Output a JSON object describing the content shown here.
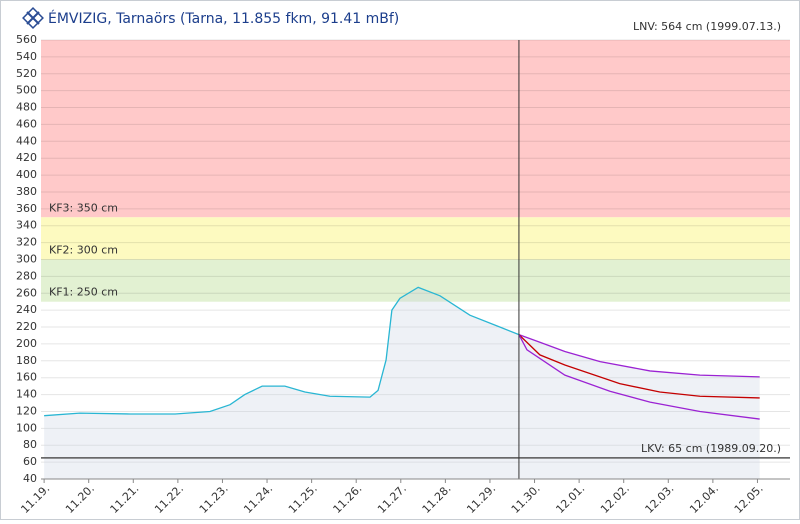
{
  "chart_data": {
    "type": "line",
    "title": "ÉMVIZIG, Tarnaörs (Tarna, 11.855 fkm, 91.41 mBf)",
    "annotation": "LNV: 564 cm (1999.07.13.)",
    "xlim": [
      -0.07,
      16.73
    ],
    "xticks": [
      {
        "value": 0,
        "label": "11.19."
      },
      {
        "value": 1,
        "label": "11.20."
      },
      {
        "value": 2,
        "label": "11.21."
      },
      {
        "value": 3,
        "label": "11.22."
      },
      {
        "value": 4,
        "label": "11.23."
      },
      {
        "value": 5,
        "label": "11.24."
      },
      {
        "value": 6,
        "label": "11.25."
      },
      {
        "value": 7,
        "label": "11.26."
      },
      {
        "value": 8,
        "label": "11.27."
      },
      {
        "value": 9,
        "label": "11.28."
      },
      {
        "value": 10,
        "label": "11.29."
      },
      {
        "value": 11,
        "label": "11.30."
      },
      {
        "value": 12,
        "label": "12.01."
      },
      {
        "value": 13,
        "label": "12.02."
      },
      {
        "value": 14,
        "label": "12.03."
      },
      {
        "value": 15,
        "label": "12.04."
      },
      {
        "value": 16,
        "label": "12.05."
      }
    ],
    "ylim": [
      40,
      560
    ],
    "yticks": [
      40,
      60,
      80,
      100,
      120,
      140,
      160,
      180,
      200,
      220,
      240,
      260,
      280,
      300,
      320,
      340,
      360,
      380,
      400,
      420,
      440,
      460,
      480,
      500,
      520,
      540,
      560
    ],
    "grid": true,
    "bands": [
      {
        "lower": 350,
        "upper": 560,
        "color": "#ffc9c9",
        "label": "KF3: 350 cm"
      },
      {
        "lower": 300,
        "upper": 350,
        "color": "#fdfac0",
        "label": "KF2: 300 cm"
      },
      {
        "lower": 250,
        "upper": 300,
        "color": "#e2f1d2",
        "label": "KF1: 250 cm"
      }
    ],
    "hlines": [
      {
        "value": 65,
        "label": "LKV: 65 cm (1989.09.20.)",
        "color": "#555555"
      }
    ],
    "vline": 10.65,
    "series": [
      {
        "color": "#29b6d3",
        "area": true,
        "x": [
          0,
          0.8,
          1.93,
          2.94,
          3.72,
          4.17,
          4.5,
          4.89,
          5.4,
          5.85,
          6.41,
          7.31,
          7.49,
          7.67,
          7.8,
          7.98,
          8.39,
          8.88,
          9.55,
          10.22,
          10.65
        ],
        "values": [
          115,
          118,
          117,
          117,
          120,
          128,
          140,
          150,
          150,
          143,
          138,
          137,
          145,
          181,
          240,
          254,
          267,
          257,
          234,
          220,
          211
        ]
      },
      {
        "color": "#9b22d3",
        "area": true,
        "x": [
          10.65,
          11.12,
          11.68,
          12.47,
          13.59,
          14.71,
          16.05
        ],
        "values": [
          211,
          202,
          191,
          179,
          168,
          163,
          161
        ]
      },
      {
        "color": "#c40000",
        "x": [
          10.65,
          11.12,
          11.68,
          12.91,
          13.81,
          14.71,
          16.05
        ],
        "values": [
          211,
          187,
          175,
          153,
          143,
          138,
          136
        ]
      },
      {
        "color": "#9b22d3",
        "x": [
          10.65,
          10.83,
          11.68,
          12.69,
          13.59,
          14.71,
          16.05
        ],
        "values": [
          211,
          193,
          163,
          144,
          131,
          120,
          111
        ]
      }
    ]
  }
}
